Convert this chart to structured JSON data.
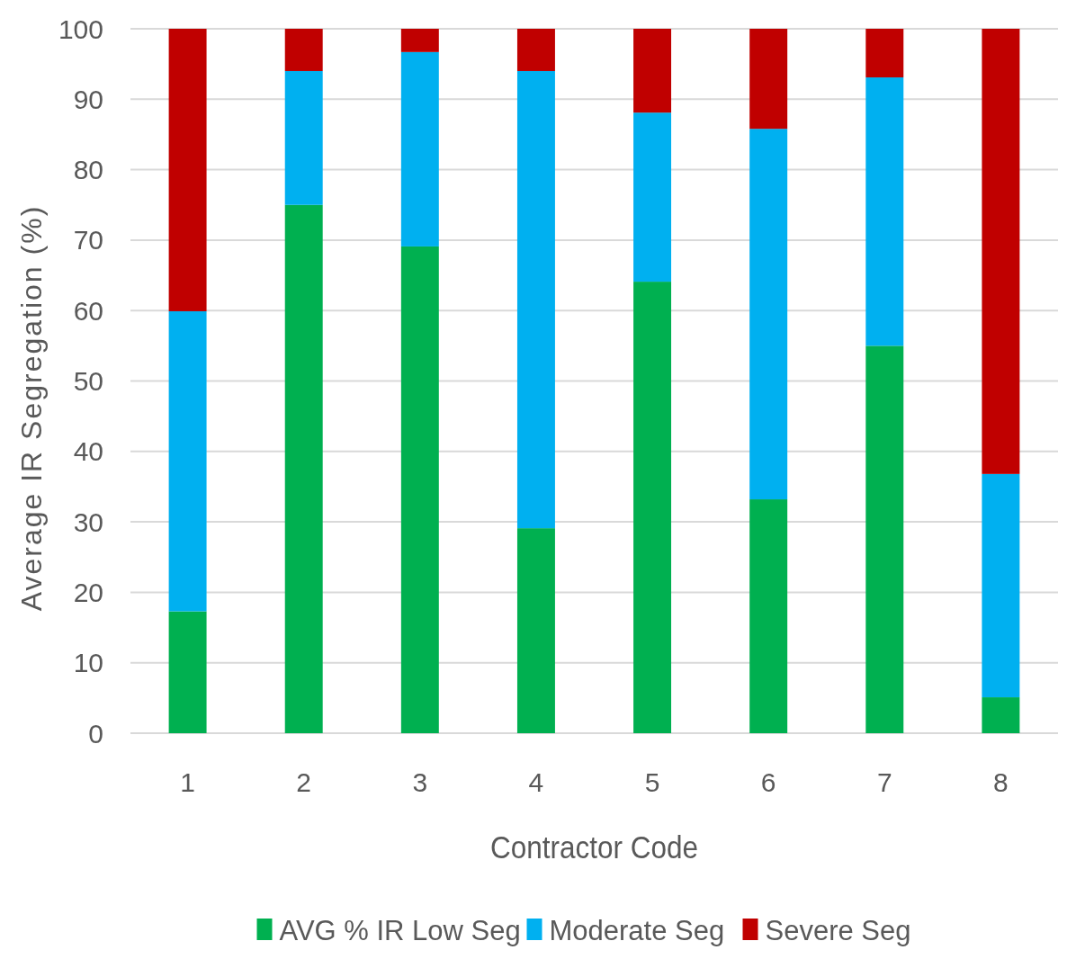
{
  "chart_data": {
    "type": "bar",
    "stacked": true,
    "xlabel": "Contractor Code",
    "ylabel": "Average IR Segregation (%)",
    "categories": [
      "1",
      "2",
      "3",
      "4",
      "5",
      "6",
      "7",
      "8"
    ],
    "series": [
      {
        "name": "AVG % IR Low Seg",
        "color": "#00b050",
        "values": [
          17.3,
          75,
          69.1,
          29.1,
          64.1,
          33.2,
          55,
          5.1
        ]
      },
      {
        "name": "Moderate Seg",
        "color": "#00b0f0",
        "values": [
          42.6,
          19,
          27.6,
          64.9,
          24,
          52.6,
          38.1,
          31.7
        ]
      },
      {
        "name": "Severe Seg",
        "color": "#c00000",
        "values": [
          40.1,
          6,
          3.3,
          6,
          11.9,
          14.2,
          6.9,
          63.2
        ]
      }
    ],
    "ylim": [
      0,
      100
    ],
    "yticks": [
      0,
      10,
      20,
      30,
      40,
      50,
      60,
      70,
      80,
      90,
      100
    ],
    "grid": "y",
    "legend": "bottom"
  }
}
